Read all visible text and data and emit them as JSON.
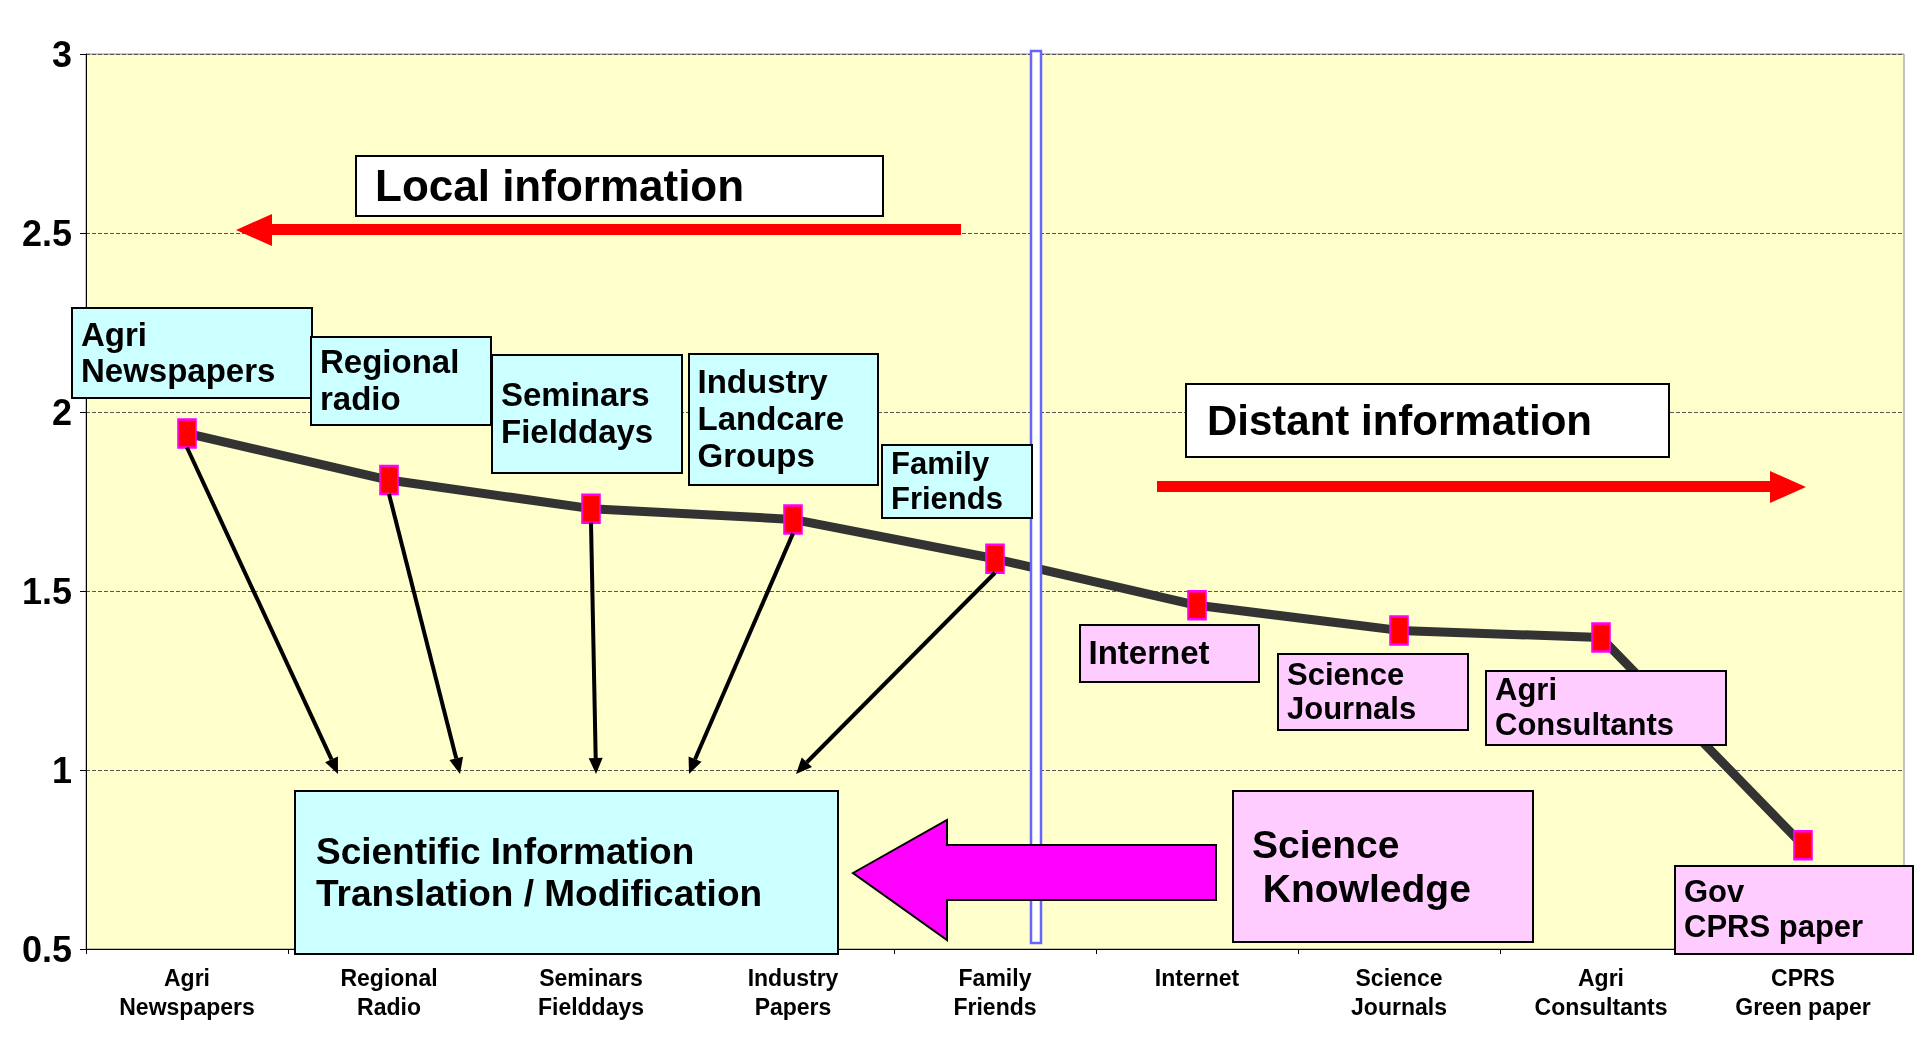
{
  "chart_data": {
    "type": "line",
    "categories": [
      "Agri\nNewspapers",
      "Regional\nRadio",
      "Seminars\nFielddays",
      "Industry\nPapers",
      "Family\nFriends",
      "Internet",
      "Science\nJournals",
      "Agri\nConsultants",
      "CPRS\nGreen paper"
    ],
    "series": [
      {
        "color": "#333333",
        "values": [
          1.94,
          1.81,
          1.73,
          1.7,
          1.59,
          1.46,
          1.39,
          1.37,
          0.79
        ]
      }
    ],
    "ylim": [
      0.5,
      3
    ],
    "yticks": [
      0.5,
      1,
      1.5,
      2,
      2.5,
      3
    ],
    "grid": "y",
    "marker": "square",
    "line_style": "solid",
    "annotations": [
      {
        "text": "Agri\nNewspapers",
        "x": "Agri\nNewspapers",
        "y": 1.94
      },
      {
        "text": "Regional\nradio",
        "x": "Regional\nRadio",
        "y": 1.81
      },
      {
        "text": "Seminars\nFielddays",
        "x": "Seminars\nFielddays",
        "y": 1.73
      },
      {
        "text": "Industry\nLandcare\nGroups",
        "x": "Industry\nPapers",
        "y": 1.7
      },
      {
        "text": "Family\nFriends",
        "x": "Family\nFriends",
        "y": 1.59
      },
      {
        "text": "Internet",
        "x": "Internet",
        "y": 1.46
      },
      {
        "text": "Science\nJournals",
        "x": "Science\nJournals",
        "y": 1.39
      },
      {
        "text": "Agri\nConsultants",
        "x": "Agri\nConsultants",
        "y": 1.37
      },
      {
        "text": "Gov\nCPRS paper",
        "x": "CPRS\nGreen paper",
        "y": 0.79
      },
      "Local information",
      "Distant information",
      "Scientific Information\nTranslation / Modification",
      "Science\n Knowledge"
    ]
  }
}
